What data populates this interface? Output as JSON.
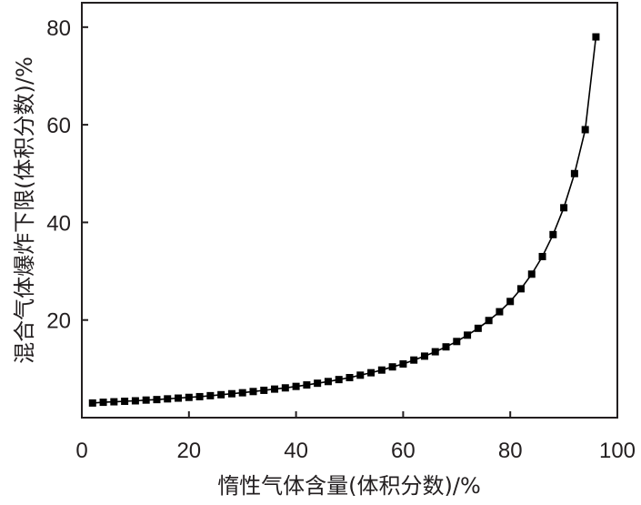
{
  "chart_data": {
    "type": "line",
    "xlabel": "惰性气体含量(体积分数)/%",
    "ylabel": "混合气体爆炸下限(体积分数)/%",
    "xlim": [
      0,
      100
    ],
    "ylim": [
      0,
      85
    ],
    "xticks": [
      0,
      20,
      40,
      60,
      80,
      100
    ],
    "yticks": [
      20,
      40,
      60,
      80
    ],
    "grid": false,
    "legend": "none",
    "series": [
      {
        "marker": "square",
        "color": "#000000",
        "x": [
          2,
          4,
          6,
          8,
          10,
          12,
          14,
          16,
          18,
          20,
          22,
          24,
          26,
          28,
          30,
          32,
          34,
          36,
          38,
          40,
          42,
          44,
          46,
          48,
          50,
          52,
          54,
          56,
          58,
          60,
          62,
          64,
          66,
          68,
          70,
          72,
          74,
          76,
          78,
          80,
          82,
          84,
          86,
          88,
          90,
          92,
          94,
          96
        ],
        "y": [
          3.0,
          3.15,
          3.25,
          3.35,
          3.45,
          3.6,
          3.7,
          3.85,
          4.0,
          4.15,
          4.3,
          4.5,
          4.7,
          4.9,
          5.1,
          5.35,
          5.6,
          5.85,
          6.1,
          6.4,
          6.7,
          7.05,
          7.4,
          7.8,
          8.2,
          8.7,
          9.2,
          9.75,
          10.4,
          11.0,
          11.8,
          12.6,
          13.5,
          14.5,
          15.6,
          16.9,
          18.3,
          19.9,
          21.7,
          23.8,
          26.4,
          29.4,
          33.0,
          37.5,
          43.0,
          50.0,
          59.0,
          78.0
        ]
      }
    ]
  }
}
